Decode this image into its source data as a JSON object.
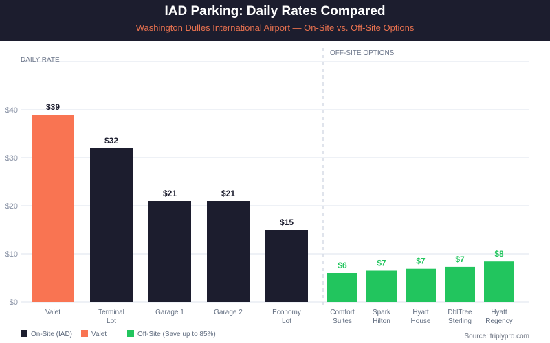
{
  "header": {
    "title": "IAD Parking: Daily Rates Compared",
    "subtitle": "Washington Dulles International Airport — On-Site vs. Off-Site Options"
  },
  "source": "Source: triplypro.com",
  "colors": {
    "onsite": "#1c1d2e",
    "valet": "#f97452",
    "offsite": "#22c55e"
  },
  "chart_data": {
    "type": "bar",
    "title": "IAD Parking: Daily Rates Compared",
    "subtitle": "Washington Dulles International Airport — On-Site vs. Off-Site Options",
    "ylabel": "DAILY RATE",
    "section_labels": {
      "offsite": "OFF-SITE OPTIONS"
    },
    "ylim": [
      0,
      50
    ],
    "yticks": [
      0,
      10,
      20,
      30,
      40,
      50
    ],
    "ytick_labels": [
      "$0",
      "$10",
      "$20",
      "$30",
      "$40",
      ""
    ],
    "grid": true,
    "legend_position": "bottom-left",
    "legend": [
      {
        "label": "On-Site (IAD)",
        "group": "onsite"
      },
      {
        "label": "Valet",
        "group": "valet"
      },
      {
        "label": "Off-Site (Save up to 85%)",
        "group": "offsite"
      }
    ],
    "categories": [
      {
        "label": [
          "Valet"
        ],
        "value": 39,
        "display": "$39",
        "group": "valet"
      },
      {
        "label": [
          "Terminal",
          "Lot"
        ],
        "value": 32,
        "display": "$32",
        "group": "onsite"
      },
      {
        "label": [
          "Garage 1"
        ],
        "value": 21,
        "display": "$21",
        "group": "onsite"
      },
      {
        "label": [
          "Garage 2"
        ],
        "value": 21,
        "display": "$21",
        "group": "onsite"
      },
      {
        "label": [
          "Economy",
          "Lot"
        ],
        "value": 15,
        "display": "$15",
        "group": "onsite"
      },
      {
        "label": [
          "Comfort",
          "Suites"
        ],
        "value": 6.0,
        "display": "$6",
        "group": "offsite"
      },
      {
        "label": [
          "Spark",
          "Hilton"
        ],
        "value": 6.5,
        "display": "$7",
        "group": "offsite"
      },
      {
        "label": [
          "Hyatt",
          "House"
        ],
        "value": 6.9,
        "display": "$7",
        "group": "offsite"
      },
      {
        "label": [
          "DblTree",
          "Sterling"
        ],
        "value": 7.3,
        "display": "$7",
        "group": "offsite"
      },
      {
        "label": [
          "Hyatt",
          "Regency"
        ],
        "value": 8.4,
        "display": "$8",
        "group": "offsite"
      }
    ]
  }
}
